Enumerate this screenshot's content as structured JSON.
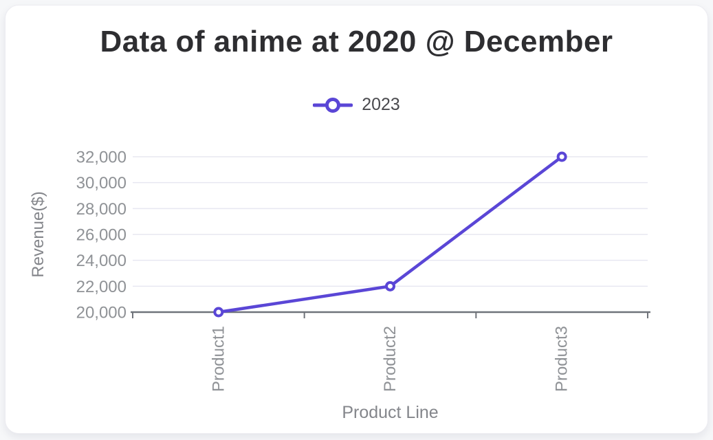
{
  "page": {
    "title": "Data of anime at 2020 @ December"
  },
  "chart_data": {
    "type": "line",
    "title": "Data of anime at 2020 @ December",
    "categories": [
      "Product1",
      "Product2",
      "Product3"
    ],
    "series": [
      {
        "name": "2023",
        "values": [
          20000,
          22000,
          32000
        ]
      }
    ],
    "xlabel": "Product Line",
    "ylabel": "Revenue($)",
    "ylim": [
      20000,
      32000
    ],
    "ytick_step": 2000,
    "ytick_labels": [
      "20,000",
      "22,000",
      "24,000",
      "26,000",
      "28,000",
      "30,000",
      "32,000"
    ],
    "grid": true,
    "legend_position": "top",
    "marker_style": "open-circle",
    "colors": {
      "series": "#5a46d6",
      "marker_fill": "#ffffff",
      "grid": "#e7e7f1",
      "axis": "#6f737a",
      "tick_label": "#8f9296",
      "axis_title": "#84868b",
      "title": "#2e2e31",
      "legend_text": "#4a4a4e",
      "card_bg": "#ffffff",
      "page_bg": "#f6f7f9"
    }
  }
}
